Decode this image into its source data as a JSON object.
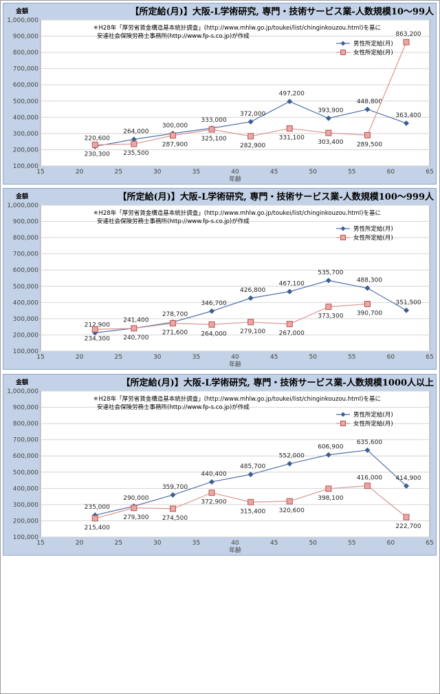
{
  "chart_data": [
    {
      "type": "line",
      "title": "【所定給(月)】大阪-L学術研究, 専門・技術サービス業-人数規模10〜99人",
      "ylabel": "金額",
      "xlabel": "年齢",
      "note": [
        "＊H28年「厚労省賃金構造基本統計調査」(http://www.mhlw.go.jp/toukei/list/chinginkouzou.html)を基に",
        "安達社会保険労務士事務所(http://www.fp-s.co.jp)が作成"
      ],
      "xlim": [
        15,
        65
      ],
      "ylim": [
        100000,
        1000000
      ],
      "x_ticks": [
        15,
        20,
        25,
        30,
        35,
        40,
        45,
        50,
        55,
        60,
        65
      ],
      "y_ticks": [
        100000,
        200000,
        300000,
        400000,
        500000,
        600000,
        700000,
        800000,
        900000,
        1000000
      ],
      "x_tick_labels": [
        "15",
        "20",
        "25",
        "30",
        "35",
        "40",
        "45",
        "50",
        "55",
        "60",
        "65"
      ],
      "y_tick_labels": [
        "100,000",
        "200,000",
        "300,000",
        "400,000",
        "500,000",
        "600,000",
        "700,000",
        "800,000",
        "900,000",
        "1,000,000"
      ],
      "legend_position": "top-right",
      "grid": true,
      "series": [
        {
          "name": "男性所定給(月)",
          "color": "#3b5f95",
          "marker": "diamond",
          "x": [
            22,
            27,
            32,
            37,
            42,
            47,
            52,
            57,
            62
          ],
          "values": [
            220600,
            264000,
            300000,
            333000,
            372000,
            497200,
            393900,
            448800,
            363400
          ],
          "labels": [
            "220,600",
            "264,000",
            "300,000",
            "333,000",
            "372,000",
            "497,200",
            "393,900",
            "448,800",
            "363,400"
          ]
        },
        {
          "name": "女性所定給(月)",
          "color": "#c0504d",
          "marker": "square",
          "x": [
            22,
            27,
            32,
            37,
            42,
            47,
            52,
            57,
            62
          ],
          "values": [
            230300,
            235500,
            287900,
            325100,
            282900,
            331100,
            303400,
            289500,
            863200
          ],
          "labels": [
            "230,300",
            "235,500",
            "287,900",
            "325,100",
            "282,900",
            "331,100",
            "303,400",
            "289,500",
            "863,200"
          ]
        }
      ]
    },
    {
      "type": "line",
      "title": "【所定給(月)】大阪-L学術研究, 専門・技術サービス業-人数規模100〜999人",
      "ylabel": "金額",
      "xlabel": "年齢",
      "note": [
        "＊H28年「厚労省賃金構造基本統計調査」(http://www.mhlw.go.jp/toukei/list/chinginkouzou.html)を基に",
        "安達社会保険労務士事務所(http://www.fp-s.co.jp)が作成"
      ],
      "xlim": [
        15,
        65
      ],
      "ylim": [
        100000,
        1000000
      ],
      "x_ticks": [
        15,
        20,
        25,
        30,
        35,
        40,
        45,
        50,
        55,
        60,
        65
      ],
      "y_ticks": [
        100000,
        200000,
        300000,
        400000,
        500000,
        600000,
        700000,
        800000,
        900000,
        1000000
      ],
      "x_tick_labels": [
        "15",
        "20",
        "25",
        "30",
        "35",
        "40",
        "45",
        "50",
        "55",
        "60",
        "65"
      ],
      "y_tick_labels": [
        "100,000",
        "200,000",
        "300,000",
        "400,000",
        "500,000",
        "600,000",
        "700,000",
        "800,000",
        "900,000",
        "1,000,000"
      ],
      "legend_position": "top-right",
      "grid": true,
      "series": [
        {
          "name": "男性所定給(月)",
          "color": "#3b5f95",
          "marker": "diamond",
          "x": [
            22,
            27,
            32,
            37,
            42,
            47,
            52,
            57,
            62
          ],
          "values": [
            212900,
            241400,
            278700,
            346700,
            426800,
            467100,
            535700,
            488300,
            351500
          ],
          "labels": [
            "212,900",
            "241,400",
            "278,700",
            "346,700",
            "426,800",
            "467,100",
            "535,700",
            "488,300",
            "351,500"
          ]
        },
        {
          "name": "女性所定給(月)",
          "color": "#c0504d",
          "marker": "square",
          "x": [
            22,
            27,
            32,
            37,
            42,
            47,
            52,
            57
          ],
          "values": [
            234300,
            240700,
            271600,
            264000,
            279100,
            267000,
            373300,
            390700
          ],
          "labels": [
            "234,300",
            "240,700",
            "271,600",
            "264,000",
            "279,100",
            "267,000",
            "373,300",
            "390,700"
          ]
        }
      ]
    },
    {
      "type": "line",
      "title": "【所定給(月)】大阪-L学術研究, 専門・技術サービス業-人数規模1000人以上",
      "ylabel": "金額",
      "xlabel": "年齢",
      "note": [
        "＊H28年「厚労省賃金構造基本統計調査」(http://www.mhlw.go.jp/toukei/list/chinginkouzou.html)を基に",
        "安達社会保険労務士事務所(http://www.fp-s.co.jp)が作成"
      ],
      "xlim": [
        15,
        65
      ],
      "ylim": [
        100000,
        1000000
      ],
      "x_ticks": [
        15,
        20,
        25,
        30,
        35,
        40,
        45,
        50,
        55,
        60,
        65
      ],
      "y_ticks": [
        100000,
        200000,
        300000,
        400000,
        500000,
        600000,
        700000,
        800000,
        900000,
        1000000
      ],
      "x_tick_labels": [
        "15",
        "20",
        "25",
        "30",
        "35",
        "40",
        "45",
        "50",
        "55",
        "60",
        "65"
      ],
      "y_tick_labels": [
        "100,000",
        "200,000",
        "300,000",
        "400,000",
        "500,000",
        "600,000",
        "700,000",
        "800,000",
        "900,000",
        "1,000,000"
      ],
      "legend_position": "top-right",
      "grid": true,
      "series": [
        {
          "name": "男性所定給(月)",
          "color": "#3b5f95",
          "marker": "diamond",
          "x": [
            22,
            27,
            32,
            37,
            42,
            47,
            52,
            57,
            62
          ],
          "values": [
            235000,
            290000,
            359700,
            440400,
            485700,
            552000,
            606900,
            635600,
            414900
          ],
          "labels": [
            "235,000",
            "290,000",
            "359,700",
            "440,400",
            "485,700",
            "552,000",
            "606,900",
            "635,600",
            "414,900"
          ]
        },
        {
          "name": "女性所定給(月)",
          "color": "#c0504d",
          "marker": "square",
          "x": [
            22,
            27,
            32,
            37,
            42,
            47,
            52,
            57,
            62
          ],
          "values": [
            215400,
            279300,
            274500,
            372900,
            315400,
            320600,
            398100,
            416000,
            222700
          ],
          "labels": [
            "215,400",
            "279,300",
            "274,500",
            "372,900",
            "315,400",
            "320,600",
            "398,100",
            "416,000",
            "222,700"
          ]
        }
      ]
    }
  ]
}
